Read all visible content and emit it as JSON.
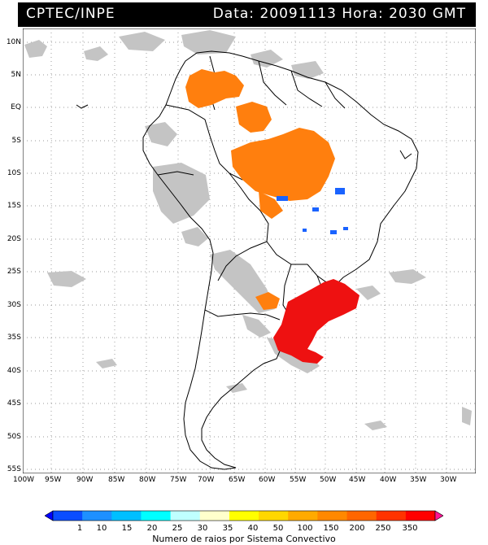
{
  "header": {
    "agency": "CPTEC/INPE",
    "datetime": "Data: 20091113 Hora: 2030 GMT"
  },
  "map": {
    "lat_labels": [
      "10N",
      "5N",
      "EQ",
      "5S",
      "10S",
      "15S",
      "20S",
      "25S",
      "30S",
      "35S",
      "40S",
      "45S",
      "50S",
      "55S"
    ],
    "lon_labels": [
      "100W",
      "95W",
      "90W",
      "85W",
      "80W",
      "75W",
      "70W",
      "65W",
      "60W",
      "55W",
      "50W",
      "45W",
      "40W",
      "35W",
      "30W"
    ],
    "colors": {
      "cloud_gray": "#bdbdbd",
      "orange": "#ff7f0e",
      "red": "#ee1111",
      "blue": "#1a63ff",
      "border": "#000000"
    }
  },
  "colorbar": {
    "title": "Numero de raios por Sistema Convectivo",
    "ticks": [
      "1",
      "10",
      "15",
      "20",
      "25",
      "30",
      "35",
      "40",
      "50",
      "100",
      "150",
      "200",
      "250",
      "350"
    ],
    "colors": [
      "#0000ff",
      "#0a4dff",
      "#1e90ff",
      "#00bfff",
      "#00ffff",
      "#bfffff",
      "#ffffcc",
      "#ffff00",
      "#ffd700",
      "#ffaa00",
      "#ff8800",
      "#ff6600",
      "#ff3300",
      "#ff0000",
      "#ff1493"
    ]
  }
}
